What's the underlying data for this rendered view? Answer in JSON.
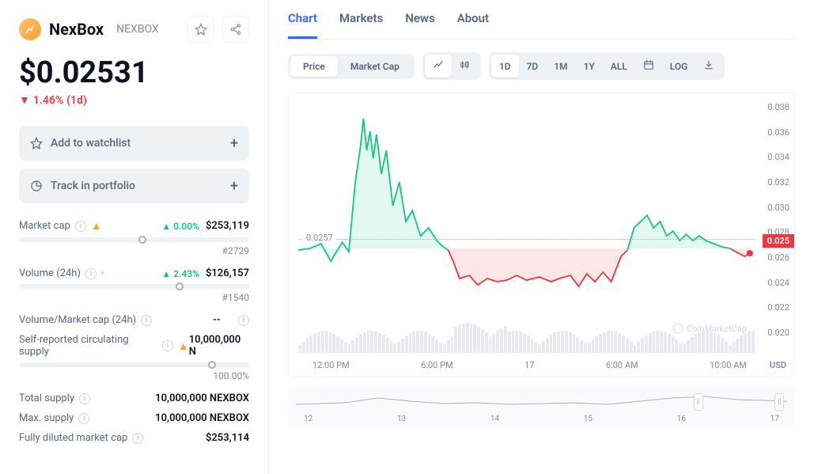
{
  "coin": {
    "name": "NexBox",
    "ticker": "NEXBOX",
    "price": "$0.02531",
    "change_pct": "1.46%",
    "change_period": "(1d)",
    "logo_bg": "#ffc068"
  },
  "actions": {
    "watchlist": "Add to watchlist",
    "portfolio": "Track in portfolio"
  },
  "stats": {
    "market_cap": {
      "label": "Market cap",
      "pct": "0.00%",
      "value": "$253,119",
      "rank": "#2729",
      "bar_pct": 52
    },
    "volume": {
      "label": "Volume (24h)",
      "pct": "2.43%",
      "value": "$126,157",
      "rank": "#1540",
      "bar_pct": 68
    },
    "vol_mc": {
      "label": "Volume/Market cap (24h)",
      "value": "--"
    },
    "circ": {
      "label": "Self-reported circulating supply",
      "value": "10,000,000 N",
      "pct_label": "100.00%",
      "bar_pct": 82
    },
    "total": {
      "label": "Total supply",
      "value": "10,000,000 NEXBOX"
    },
    "max": {
      "label": "Max. supply",
      "value": "10,000,000 NEXBOX"
    },
    "fdmc": {
      "label": "Fully diluted market cap",
      "value": "$253,114"
    }
  },
  "tabs": [
    "Chart",
    "Markets",
    "News",
    "About"
  ],
  "price_tabs": [
    "Price",
    "Market Cap"
  ],
  "ranges": [
    "1D",
    "7D",
    "1M",
    "1Y",
    "ALL"
  ],
  "log_label": "LOG",
  "chart": {
    "type": "line",
    "ylim": [
      0.02,
      0.038
    ],
    "yticks": [
      "0.038",
      "0.036",
      "0.034",
      "0.032",
      "0.030",
      "0.028",
      "0.026",
      "0.024",
      "0.022",
      "0.020"
    ],
    "xticks": [
      "12:00 PM",
      "6:00 PM",
      "17",
      "6:00 AM",
      "10:00 AM"
    ],
    "ref_value": "0.0257",
    "current_badge": "0.025",
    "up_color": "#16c784",
    "down_color": "#ea3943",
    "bg": "#ffffff",
    "watermark": "CoinMarketCap",
    "usd": "USD",
    "segments": [
      {
        "color": "up",
        "points": [
          [
            0,
            186
          ],
          [
            14,
            184
          ],
          [
            28,
            178
          ],
          [
            40,
            200
          ],
          [
            54,
            176
          ],
          [
            62,
            188
          ],
          [
            70,
            100
          ],
          [
            76,
            58
          ],
          [
            80,
            20
          ],
          [
            84,
            60
          ],
          [
            88,
            36
          ],
          [
            92,
            70
          ],
          [
            96,
            40
          ],
          [
            102,
            90
          ],
          [
            108,
            60
          ],
          [
            116,
            130
          ],
          [
            124,
            100
          ],
          [
            132,
            150
          ],
          [
            140,
            136
          ],
          [
            150,
            168
          ],
          [
            160,
            158
          ],
          [
            170,
            174
          ],
          [
            178,
            182
          ],
          [
            184,
            186
          ]
        ]
      },
      {
        "color": "down",
        "points": [
          [
            184,
            186
          ],
          [
            190,
            200
          ],
          [
            198,
            222
          ],
          [
            210,
            218
          ],
          [
            220,
            230
          ],
          [
            232,
            222
          ],
          [
            244,
            226
          ],
          [
            256,
            224
          ],
          [
            268,
            218
          ],
          [
            280,
            224
          ],
          [
            296,
            220
          ],
          [
            310,
            226
          ],
          [
            320,
            222
          ],
          [
            334,
            218
          ],
          [
            344,
            232
          ],
          [
            354,
            216
          ],
          [
            364,
            226
          ],
          [
            374,
            214
          ],
          [
            384,
            226
          ],
          [
            396,
            194
          ],
          [
            404,
            186
          ]
        ]
      },
      {
        "color": "up",
        "points": [
          [
            404,
            186
          ],
          [
            412,
            158
          ],
          [
            420,
            150
          ],
          [
            428,
            142
          ],
          [
            436,
            158
          ],
          [
            444,
            150
          ],
          [
            452,
            168
          ],
          [
            460,
            162
          ],
          [
            468,
            174
          ],
          [
            476,
            166
          ],
          [
            484,
            174
          ],
          [
            492,
            168
          ],
          [
            500,
            174
          ],
          [
            510,
            178
          ],
          [
            520,
            182
          ],
          [
            530,
            184
          ]
        ]
      },
      {
        "color": "down",
        "points": [
          [
            530,
            184
          ],
          [
            540,
            190
          ],
          [
            548,
            194
          ],
          [
            554,
            190
          ]
        ]
      }
    ],
    "end_dot": [
      554,
      190
    ]
  },
  "mini": {
    "labels": [
      "12",
      "13",
      "14",
      "15",
      "16",
      "17"
    ],
    "handle_left_pct": 80,
    "handle_right_pct": 96
  }
}
